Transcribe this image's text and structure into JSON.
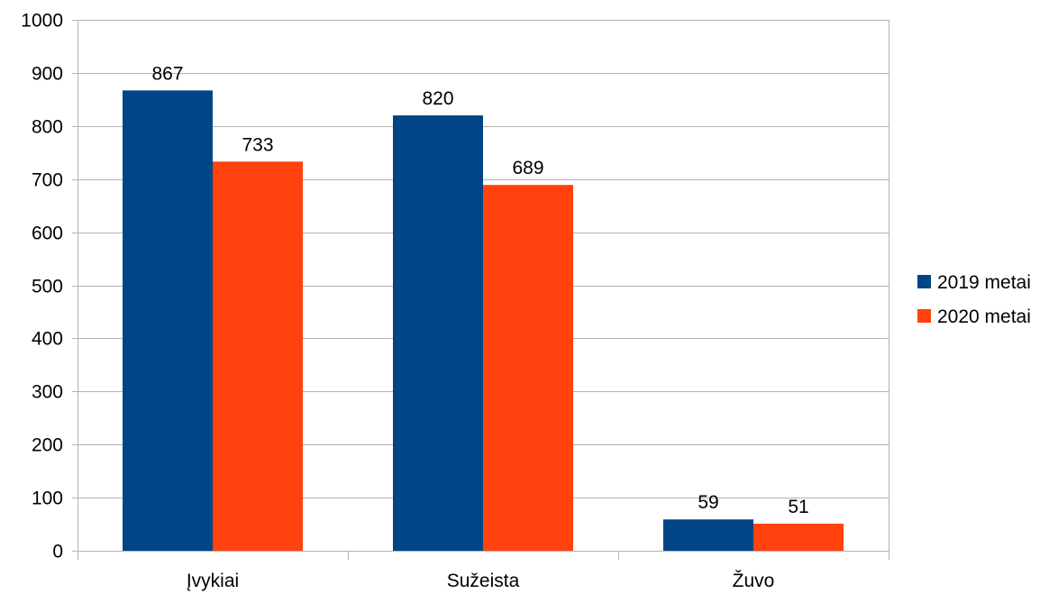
{
  "chart_data": {
    "type": "bar",
    "categories": [
      "Įvykiai",
      "Sužeista",
      "Žuvo"
    ],
    "series": [
      {
        "name": "2019 metai",
        "values": [
          867,
          820,
          59
        ],
        "color": "#004586"
      },
      {
        "name": "2020 metai",
        "values": [
          733,
          689,
          51
        ],
        "color": "#ff420e"
      }
    ],
    "ylim": [
      0,
      1000
    ],
    "yticks": [
      0,
      100,
      200,
      300,
      400,
      500,
      600,
      700,
      800,
      900,
      1000
    ],
    "grid": true,
    "legend": "right",
    "data_labels": true,
    "gridline_color": "#b3b3b3"
  }
}
